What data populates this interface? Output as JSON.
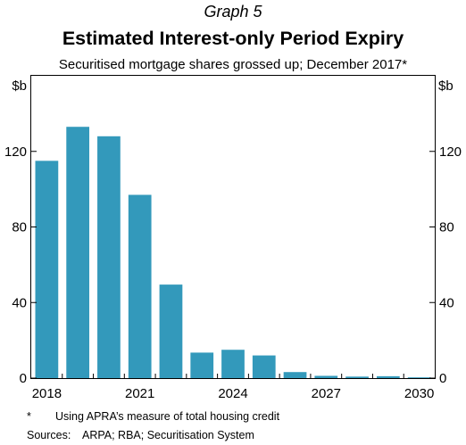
{
  "graph_label": "Graph 5",
  "chart_data": {
    "type": "bar",
    "title": "Estimated Interest-only Period Expiry",
    "subtitle": "Securitised mortgage shares grossed up; December 2017*",
    "y_unit_left": "$b",
    "y_unit_right": "$b",
    "ylim": [
      0,
      160
    ],
    "yticks": [
      0,
      40,
      80,
      120
    ],
    "x_tick_labels": [
      "2018",
      "2021",
      "2024",
      "2027",
      "2030"
    ],
    "categories": [
      "2018",
      "2019",
      "2020",
      "2021",
      "2022",
      "2023",
      "2024",
      "2025",
      "2026",
      "2027",
      "2028",
      "2029",
      "2030"
    ],
    "values": [
      115,
      133,
      128,
      97,
      49.5,
      13.5,
      15,
      12,
      3.2,
      1.2,
      0.8,
      1.0,
      0.4
    ],
    "bar_color": "#3399bb",
    "grid": false
  },
  "footnote": {
    "marker": "*",
    "text": "Using APRA’s measure of total housing credit"
  },
  "sources": {
    "label": "Sources:",
    "text": "ARPA; RBA; Securitisation System"
  }
}
